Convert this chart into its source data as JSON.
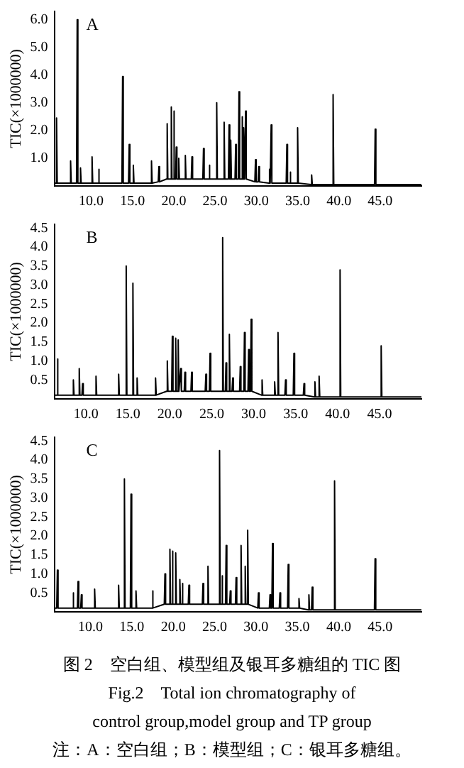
{
  "chart_data": [
    {
      "type": "line",
      "title": "A",
      "ylabel": "TIC(×1000000)",
      "color": "#000000",
      "xlim": [
        5.6,
        50
      ],
      "ylim": [
        0,
        6.3
      ],
      "xticks": [
        {
          "value": 10,
          "label": "10.0"
        },
        {
          "value": 15,
          "label": "15.0"
        },
        {
          "value": 20,
          "label": "20.0"
        },
        {
          "value": 25,
          "label": "25.0"
        },
        {
          "value": 30,
          "label": "30.0"
        },
        {
          "value": 35,
          "label": "35.0"
        },
        {
          "value": 40,
          "label": "40.0"
        },
        {
          "value": 45,
          "label": "45.0"
        }
      ],
      "yticks": [
        {
          "value": 1,
          "label": "1.0"
        },
        {
          "value": 2,
          "label": "2.0"
        },
        {
          "value": 3,
          "label": "3.0"
        },
        {
          "value": 4,
          "label": "4.0"
        },
        {
          "value": 5,
          "label": "5.0"
        },
        {
          "value": 6,
          "label": "6.0"
        }
      ],
      "x": [
        5.6,
        5.72,
        5.8,
        5.88,
        7.42,
        7.5,
        7.58,
        8.22,
        8.3,
        8.38,
        8.62,
        8.7,
        8.78,
        10.02,
        10.1,
        10.18,
        10.82,
        10.9,
        10.98,
        13.72,
        13.8,
        13.88,
        14.52,
        14.6,
        14.68,
        15.02,
        15.1,
        15.18,
        17.22,
        17.3,
        17.38,
        18.12,
        18.2,
        18.28,
        19.12,
        19.2,
        19.28,
        19.62,
        19.7,
        19.78,
        19.92,
        20.0,
        20.08,
        20.22,
        20.3,
        20.38,
        20.52,
        20.6,
        20.68,
        21.32,
        21.4,
        21.48,
        22.12,
        22.2,
        22.28,
        23.52,
        23.6,
        23.68,
        24.22,
        24.3,
        24.38,
        25.12,
        25.2,
        25.28,
        26.02,
        26.1,
        26.18,
        26.62,
        26.7,
        26.78,
        26.82,
        26.9,
        26.98,
        27.42,
        27.5,
        27.58,
        27.82,
        27.9,
        27.98,
        28.22,
        28.3,
        28.38,
        28.42,
        28.5,
        28.58,
        28.62,
        28.7,
        28.78,
        29.82,
        29.9,
        29.98,
        30.22,
        30.3,
        30.38,
        31.52,
        31.6,
        31.68,
        31.72,
        31.8,
        31.88,
        33.62,
        33.7,
        33.78,
        34.02,
        34.1,
        34.18,
        34.92,
        35.0,
        35.08,
        36.62,
        36.7,
        36.78,
        39.22,
        39.3,
        39.38,
        44.32,
        44.4,
        44.48,
        50
      ],
      "values": [
        0.1,
        0.1,
        2.45,
        0.1,
        0.1,
        0.9,
        0.1,
        0.1,
        6.0,
        0.1,
        0.1,
        0.65,
        0.1,
        0.1,
        1.05,
        0.1,
        0.1,
        0.6,
        0.1,
        0.1,
        3.95,
        0.1,
        0.1,
        1.5,
        0.1,
        0.1,
        0.75,
        0.1,
        0.1,
        0.9,
        0.1,
        0.15,
        0.7,
        0.15,
        0.25,
        2.25,
        0.25,
        0.25,
        2.85,
        0.25,
        0.25,
        2.7,
        0.25,
        0.25,
        1.4,
        0.25,
        0.25,
        1.0,
        0.25,
        0.25,
        1.1,
        0.25,
        0.25,
        1.05,
        0.25,
        0.25,
        1.35,
        0.25,
        0.25,
        0.75,
        0.25,
        0.25,
        3.0,
        0.25,
        0.25,
        2.3,
        0.25,
        0.25,
        2.2,
        0.25,
        0.25,
        1.65,
        0.25,
        0.25,
        1.5,
        0.25,
        0.25,
        3.4,
        0.25,
        0.25,
        2.5,
        0.25,
        0.25,
        2.1,
        0.25,
        0.25,
        2.7,
        0.25,
        0.15,
        0.95,
        0.15,
        0.15,
        0.7,
        0.15,
        0.1,
        0.6,
        0.1,
        0.1,
        2.2,
        0.1,
        0.1,
        1.5,
        0.1,
        0.1,
        0.5,
        0.1,
        0.1,
        2.1,
        0.1,
        0.05,
        0.4,
        0.05,
        0.05,
        3.3,
        0.05,
        0.05,
        2.05,
        0.05,
        0.05
      ]
    },
    {
      "type": "line",
      "title": "B",
      "ylabel": "TIC(×1000000)",
      "color": "#000000",
      "xlim": [
        6.3,
        50
      ],
      "ylim": [
        0,
        4.6
      ],
      "xticks": [
        {
          "value": 10,
          "label": "10.0"
        },
        {
          "value": 15,
          "label": "15.0"
        },
        {
          "value": 20,
          "label": "20.0"
        },
        {
          "value": 25,
          "label": "25.0"
        },
        {
          "value": 30,
          "label": "30.0"
        },
        {
          "value": 35,
          "label": "35.0"
        },
        {
          "value": 40,
          "label": "40.0"
        },
        {
          "value": 45,
          "label": "45.0"
        }
      ],
      "yticks": [
        0.5,
        {
          "value": 1,
          "label": "1.0"
        },
        1.5,
        {
          "value": 2,
          "label": "2.0"
        },
        2.5,
        {
          "value": 3,
          "label": "3.0"
        },
        3.5,
        {
          "value": 4,
          "label": "4.0"
        },
        4.5
      ],
      "x": [
        6.3,
        6.52,
        6.6,
        6.68,
        8.42,
        8.5,
        8.58,
        9.12,
        9.2,
        9.28,
        9.52,
        9.6,
        9.68,
        11.12,
        11.2,
        11.28,
        13.82,
        13.9,
        13.98,
        14.72,
        14.8,
        14.88,
        15.52,
        15.6,
        15.68,
        16.02,
        16.1,
        16.18,
        18.22,
        18.3,
        18.38,
        19.62,
        19.7,
        19.78,
        20.22,
        20.3,
        20.38,
        20.62,
        20.7,
        20.78,
        20.92,
        21.0,
        21.08,
        21.22,
        21.3,
        21.38,
        21.72,
        21.8,
        21.88,
        22.52,
        22.6,
        22.68,
        24.22,
        24.3,
        24.38,
        24.72,
        24.8,
        24.88,
        26.22,
        26.3,
        26.38,
        26.62,
        26.7,
        26.78,
        27.02,
        27.1,
        27.18,
        27.42,
        27.5,
        27.58,
        28.32,
        28.4,
        28.48,
        28.82,
        28.9,
        28.98,
        29.32,
        29.4,
        29.48,
        29.62,
        29.7,
        29.78,
        30.92,
        31.0,
        31.08,
        32.42,
        32.5,
        32.58,
        32.82,
        32.9,
        32.98,
        33.72,
        33.8,
        33.88,
        34.72,
        34.8,
        34.88,
        35.92,
        36.0,
        36.08,
        37.22,
        37.3,
        37.38,
        37.72,
        37.8,
        37.88,
        40.22,
        40.3,
        40.38,
        45.12,
        45.2,
        45.28,
        50
      ],
      "values": [
        0.1,
        0.1,
        1.05,
        0.1,
        0.1,
        0.5,
        0.1,
        0.1,
        0.8,
        0.1,
        0.1,
        0.4,
        0.1,
        0.1,
        0.6,
        0.1,
        0.1,
        0.65,
        0.1,
        0.1,
        3.5,
        0.1,
        0.1,
        3.05,
        0.1,
        0.1,
        0.55,
        0.1,
        0.1,
        0.55,
        0.1,
        0.2,
        1.0,
        0.2,
        0.2,
        1.65,
        0.2,
        0.2,
        1.6,
        0.2,
        0.2,
        1.55,
        0.2,
        0.2,
        0.8,
        0.2,
        0.2,
        0.7,
        0.2,
        0.2,
        0.7,
        0.2,
        0.2,
        0.65,
        0.2,
        0.2,
        1.2,
        0.2,
        0.2,
        4.25,
        0.2,
        0.2,
        0.95,
        0.2,
        0.2,
        1.7,
        0.2,
        0.2,
        0.55,
        0.2,
        0.2,
        0.85,
        0.2,
        0.2,
        1.75,
        0.2,
        0.2,
        1.3,
        0.2,
        0.2,
        2.1,
        0.2,
        0.1,
        0.5,
        0.1,
        0.1,
        0.45,
        0.1,
        0.1,
        1.75,
        0.1,
        0.1,
        0.5,
        0.1,
        0.1,
        1.2,
        0.1,
        0.1,
        0.4,
        0.1,
        0.05,
        0.45,
        0.05,
        0.05,
        0.6,
        0.05,
        0.05,
        3.4,
        0.05,
        0.05,
        1.4,
        0.05,
        0.05
      ]
    },
    {
      "type": "line",
      "title": "C",
      "ylabel": "TIC(×1000000)",
      "color": "#000000",
      "xlim": [
        5.7,
        50
      ],
      "ylim": [
        0,
        4.6
      ],
      "xticks": [
        {
          "value": 10,
          "label": "10.0"
        },
        {
          "value": 15,
          "label": "15.0"
        },
        {
          "value": 20,
          "label": "20.0"
        },
        {
          "value": 25,
          "label": "25.0"
        },
        {
          "value": 30,
          "label": "30.0"
        },
        {
          "value": 35,
          "label": "35.0"
        },
        {
          "value": 40,
          "label": "40.0"
        },
        {
          "value": 45,
          "label": "45.0"
        }
      ],
      "yticks": [
        0.5,
        {
          "value": 1,
          "label": "1.0"
        },
        1.5,
        {
          "value": 2,
          "label": "2.0"
        },
        2.5,
        {
          "value": 3,
          "label": "3.0"
        },
        3.5,
        {
          "value": 4,
          "label": "4.0"
        },
        4.5
      ],
      "x": [
        5.7,
        5.92,
        6.0,
        6.08,
        7.82,
        7.9,
        7.98,
        8.42,
        8.5,
        8.58,
        8.82,
        8.9,
        8.98,
        10.42,
        10.5,
        10.58,
        13.32,
        13.4,
        13.48,
        14.02,
        14.1,
        14.18,
        14.82,
        14.9,
        14.98,
        15.42,
        15.5,
        15.58,
        17.42,
        17.5,
        17.58,
        18.92,
        19.0,
        19.08,
        19.52,
        19.6,
        19.68,
        19.82,
        19.9,
        19.98,
        20.22,
        20.3,
        20.38,
        20.72,
        20.8,
        20.88,
        21.02,
        21.1,
        21.18,
        21.82,
        21.9,
        21.98,
        23.52,
        23.6,
        23.68,
        24.12,
        24.2,
        24.28,
        25.52,
        25.6,
        25.68,
        25.82,
        25.9,
        25.98,
        26.32,
        26.4,
        26.48,
        26.82,
        26.9,
        26.98,
        27.52,
        27.6,
        27.68,
        28.12,
        28.2,
        28.28,
        28.62,
        28.7,
        28.78,
        28.92,
        29.0,
        29.08,
        30.22,
        30.3,
        30.38,
        31.62,
        31.7,
        31.78,
        31.92,
        32.0,
        32.08,
        32.82,
        32.9,
        32.98,
        33.82,
        33.9,
        33.98,
        35.12,
        35.2,
        35.28,
        36.32,
        36.4,
        36.48,
        36.72,
        36.8,
        36.88,
        39.42,
        39.5,
        39.58,
        44.32,
        44.4,
        44.48,
        50
      ],
      "values": [
        0.1,
        0.1,
        1.1,
        0.1,
        0.1,
        0.5,
        0.1,
        0.1,
        0.8,
        0.1,
        0.1,
        0.45,
        0.1,
        0.1,
        0.6,
        0.1,
        0.1,
        0.7,
        0.1,
        0.1,
        3.5,
        0.1,
        0.1,
        3.1,
        0.1,
        0.1,
        0.55,
        0.1,
        0.1,
        0.55,
        0.1,
        0.2,
        1.0,
        0.2,
        0.2,
        1.65,
        0.2,
        0.2,
        1.6,
        0.2,
        0.2,
        1.55,
        0.2,
        0.2,
        0.85,
        0.2,
        0.2,
        0.75,
        0.2,
        0.2,
        0.7,
        0.2,
        0.2,
        0.75,
        0.2,
        0.2,
        1.2,
        0.2,
        0.2,
        4.25,
        0.2,
        0.2,
        0.95,
        0.2,
        0.2,
        1.75,
        0.2,
        0.2,
        0.55,
        0.2,
        0.2,
        0.9,
        0.2,
        0.2,
        1.75,
        0.2,
        0.2,
        1.2,
        0.2,
        0.2,
        2.15,
        0.2,
        0.1,
        0.5,
        0.1,
        0.1,
        0.45,
        0.1,
        0.1,
        1.8,
        0.1,
        0.1,
        0.5,
        0.1,
        0.1,
        1.25,
        0.1,
        0.1,
        0.35,
        0.1,
        0.05,
        0.45,
        0.05,
        0.05,
        0.65,
        0.05,
        0.05,
        3.45,
        0.05,
        0.05,
        1.4,
        0.05,
        0.05
      ]
    },
    {
      "type": "other",
      "annotations": [
        "图 2　空白组、模型组及银耳多糖组的 TIC 图",
        "Fig.2　Total ion chromatography of",
        "control group,model group and TP group",
        "注：A：空白组；B：模型组；C：银耳多糖组。"
      ]
    }
  ]
}
